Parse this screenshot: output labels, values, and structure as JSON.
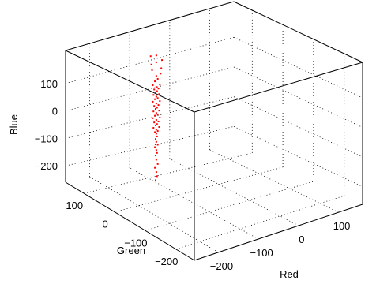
{
  "chart_data": {
    "type": "scatter",
    "title": "",
    "xlabel": "Red",
    "ylabel": "Green",
    "zlabel": "Blue",
    "xlim": [
      -260,
      160
    ],
    "ylim": [
      -260,
      160
    ],
    "zlim": [
      -260,
      220
    ],
    "x_ticks": [
      "−200",
      "−100",
      "0",
      "100"
    ],
    "y_ticks": [
      "100",
      "0",
      "−100",
      "−200"
    ],
    "z_ticks": [
      "100",
      "0",
      "−100",
      "−200"
    ],
    "grid": true,
    "series_color": "#ff0000",
    "series": [
      {
        "description": "3D scatter of red points in RGB-difference space, tightly elongated along a near-diagonal axis",
        "points": [
          [
            -110,
            60,
            140
          ],
          [
            -108,
            58,
            130
          ],
          [
            -112,
            62,
            120
          ],
          [
            -105,
            55,
            110
          ],
          [
            -115,
            65,
            105
          ],
          [
            -110,
            60,
            100
          ],
          [
            -107,
            57,
            95
          ],
          [
            -113,
            63,
            90
          ],
          [
            -109,
            59,
            85
          ],
          [
            -111,
            61,
            80
          ],
          [
            -106,
            56,
            75
          ],
          [
            -114,
            64,
            70
          ],
          [
            -110,
            60,
            65
          ],
          [
            -108,
            58,
            60
          ],
          [
            -112,
            62,
            55
          ],
          [
            -105,
            55,
            50
          ],
          [
            -115,
            65,
            45
          ],
          [
            -110,
            60,
            40
          ],
          [
            -107,
            57,
            35
          ],
          [
            -113,
            63,
            30
          ],
          [
            -109,
            59,
            25
          ],
          [
            -111,
            61,
            20
          ],
          [
            -106,
            56,
            15
          ],
          [
            -114,
            64,
            10
          ],
          [
            -110,
            60,
            5
          ],
          [
            -108,
            58,
            0
          ],
          [
            -112,
            62,
            -5
          ],
          [
            -105,
            55,
            -10
          ],
          [
            -115,
            65,
            -15
          ],
          [
            -110,
            60,
            -20
          ],
          [
            -107,
            57,
            -25
          ],
          [
            -113,
            63,
            -30
          ],
          [
            -109,
            59,
            -35
          ],
          [
            -111,
            61,
            -40
          ],
          [
            -106,
            56,
            -45
          ],
          [
            -114,
            64,
            -50
          ],
          [
            -110,
            60,
            -55
          ],
          [
            -108,
            58,
            -60
          ],
          [
            -112,
            62,
            -65
          ],
          [
            -110,
            60,
            -70
          ],
          [
            -109,
            59,
            -80
          ],
          [
            -111,
            61,
            -90
          ],
          [
            -110,
            60,
            -100
          ],
          [
            -108,
            58,
            -110
          ],
          [
            -112,
            62,
            -120
          ],
          [
            -110,
            60,
            -130
          ],
          [
            -109,
            59,
            -140
          ],
          [
            -111,
            61,
            -150
          ],
          [
            -110,
            60,
            -165
          ],
          [
            -108,
            58,
            -180
          ],
          [
            -112,
            62,
            -195
          ],
          [
            -110,
            60,
            -210
          ],
          [
            -109,
            59,
            -225
          ],
          [
            -111,
            61,
            -240
          ],
          [
            -104,
            54,
            150
          ],
          [
            -116,
            66,
            160
          ],
          [
            -103,
            53,
            170
          ],
          [
            -117,
            67,
            180
          ],
          [
            -110,
            60,
            190
          ],
          [
            -102,
            52,
            200
          ],
          [
            -118,
            68,
            210
          ],
          [
            -110,
            60,
            215
          ]
        ]
      }
    ]
  }
}
